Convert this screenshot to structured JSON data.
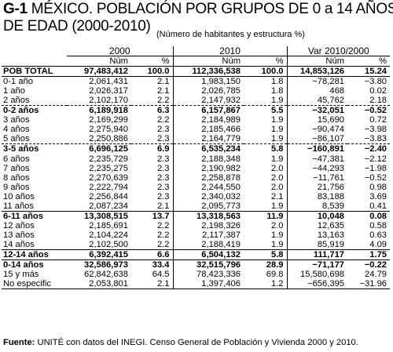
{
  "title": {
    "code": "G-1",
    "line1": "MÉXICO. POBLACIÓN POR GRUPOS DE 0 a 14 AÑOS",
    "line2": "DE  EDAD (2000-2010)",
    "subtitle": "(Número de habitantes y estructura %)"
  },
  "columns": {
    "years": [
      "2000",
      "2010",
      "Var 2010/2000"
    ],
    "num": "Núm",
    "pct": "%"
  },
  "rows": [
    {
      "label": "POB TOTAL",
      "v": [
        "97,483,412",
        "100.0",
        "112,336,538",
        "100.0",
        "14,853,126",
        "15.24"
      ]
    },
    {
      "label": "0-1 año",
      "v": [
        "2,061,431",
        "2.1",
        "1,983,150",
        "1.8",
        "−78,281",
        "−3.80"
      ]
    },
    {
      "label": "1 año",
      "v": [
        "2,026,317",
        "2.1",
        "2,026,785",
        "1.8",
        "468",
        "0.02"
      ]
    },
    {
      "label": "2 años",
      "v": [
        "2,102,170",
        "2.2",
        "2,147,932",
        "1.9",
        "45,762",
        "2.18"
      ]
    },
    {
      "label": "0-2 años",
      "v": [
        "6,189,918",
        "6.3",
        "6,157,867",
        "5.5",
        "−32,051",
        "−0.52"
      ]
    },
    {
      "label": "3 años",
      "v": [
        "2,169,299",
        "2.2",
        "2,184,989",
        "1.9",
        "15,690",
        "0.72"
      ]
    },
    {
      "label": "4 años",
      "v": [
        "2,275,940",
        "2.3",
        "2,185,466",
        "1.9",
        "−90,474",
        "−3.98"
      ]
    },
    {
      "label": "5 años",
      "v": [
        "2,250,886",
        "2.3",
        "2,164,779",
        "1.9",
        "−86,107",
        "−3.83"
      ]
    },
    {
      "label": "3-5 años",
      "v": [
        "6,696,125",
        "6.9",
        "6,535,234",
        "5.8",
        "−160,891",
        "−2.40"
      ]
    },
    {
      "label": "6 años",
      "v": [
        "2,235,729",
        "2.3",
        "2,188,348",
        "1.9",
        "−47,381",
        "−2.12"
      ]
    },
    {
      "label": "7 años",
      "v": [
        "2,235,275",
        "2.3",
        "2,190,982",
        "2.0",
        "−44,293",
        "−1.98"
      ]
    },
    {
      "label": "8 años",
      "v": [
        "2,270,639",
        "2.3",
        "2,258,878",
        "2.0",
        "−11,761",
        "−0.52"
      ]
    },
    {
      "label": "9 años",
      "v": [
        "2,222,794",
        "2.3",
        "2,244,550",
        "2.0",
        "21,756",
        "0.98"
      ]
    },
    {
      "label": "10 años",
      "v": [
        "2,256,844",
        "2.3",
        "2,340,032",
        "2.1",
        "83,188",
        "3.69"
      ]
    },
    {
      "label": "11 años",
      "v": [
        "2,087,234",
        "2.1",
        "2,095,773",
        "1.9",
        "8,539",
        "0.41"
      ]
    },
    {
      "label": "6-11 años",
      "v": [
        "13,308,515",
        "13.7",
        "13,318,563",
        "11.9",
        "10,048",
        "0.08"
      ]
    },
    {
      "label": "12 años",
      "v": [
        "2,185,691",
        "2.2",
        "2,198,326",
        "2.0",
        "12,635",
        "0.58"
      ]
    },
    {
      "label": "13 años",
      "v": [
        "2,104,224",
        "2.2",
        "2,117,387",
        "1.9",
        "13,163",
        "0.63"
      ]
    },
    {
      "label": "14 años",
      "v": [
        "2,102,500",
        "2.2",
        "2,188,419",
        "1.9",
        "85,919",
        "4.09"
      ]
    },
    {
      "label": "12-14 años",
      "v": [
        "6,392,415",
        "6.6",
        "6,504,132",
        "5.8",
        "111,717",
        "1.75"
      ]
    },
    {
      "label": "0-14 años",
      "v": [
        "32,586,973",
        "33.4",
        "32,515,796",
        "28.9",
        "−71,177",
        "−0.22"
      ]
    },
    {
      "label": "15 y más",
      "v": [
        "62,842,638",
        "64.5",
        "78,423,336",
        "69.8",
        "15,580,698",
        "24.79"
      ]
    },
    {
      "label": "No especific",
      "v": [
        "2,053,801",
        "2.1",
        "1,397,406",
        "1.2",
        "−656,395",
        "−31.96"
      ]
    }
  ],
  "footer": {
    "label": "Fuente:",
    "text": " UNITÉ con datos del INEGI. Censo General de Población y Vivienda 2000 y 2010."
  }
}
